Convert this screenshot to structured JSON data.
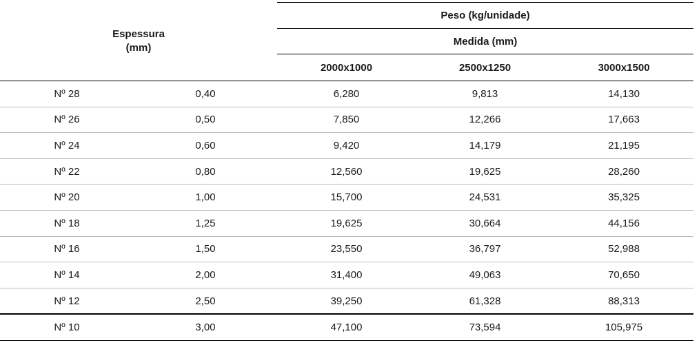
{
  "header": {
    "espessura": "Espessura",
    "espessura_unit": "(mm)",
    "peso": "Peso (kg/unidade)",
    "medida": "Medida (mm)",
    "dims": [
      "2000x1000",
      "2500x1250",
      "3000x1500"
    ]
  },
  "rows": [
    {
      "gauge": "Nº 28",
      "thickness": "0,40",
      "w1": "6,280",
      "w2": "9,813",
      "w3": "14,130"
    },
    {
      "gauge": "Nº 26",
      "thickness": "0,50",
      "w1": "7,850",
      "w2": "12,266",
      "w3": "17,663"
    },
    {
      "gauge": "Nº 24",
      "thickness": "0,60",
      "w1": "9,420",
      "w2": "14,179",
      "w3": "21,195"
    },
    {
      "gauge": "Nº 22",
      "thickness": "0,80",
      "w1": "12,560",
      "w2": "19,625",
      "w3": "28,260"
    },
    {
      "gauge": "Nº 20",
      "thickness": "1,00",
      "w1": "15,700",
      "w2": "24,531",
      "w3": "35,325"
    },
    {
      "gauge": "Nº 18",
      "thickness": "1,25",
      "w1": "19,625",
      "w2": "30,664",
      "w3": "44,156"
    },
    {
      "gauge": "Nº 16",
      "thickness": "1,50",
      "w1": "23,550",
      "w2": "36,797",
      "w3": "52,988"
    },
    {
      "gauge": "Nº 14",
      "thickness": "2,00",
      "w1": "31,400",
      "w2": "49,063",
      "w3": "70,650"
    },
    {
      "gauge": "Nº 12",
      "thickness": "2,50",
      "w1": "39,250",
      "w2": "61,328",
      "w3": "88,313"
    },
    {
      "gauge": "Nº 10",
      "thickness": "3,00",
      "w1": "47,100",
      "w2": "73,594",
      "w3": "105,975"
    }
  ]
}
